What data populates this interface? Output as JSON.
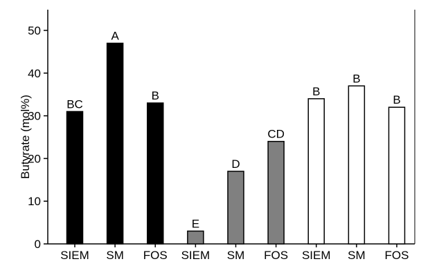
{
  "chart_data": {
    "type": "bar",
    "title": "",
    "xlabel": "",
    "ylabel": "Butyrate (mol%)",
    "ylim": [
      0,
      55
    ],
    "yticks": [
      0,
      10,
      20,
      30,
      40,
      50
    ],
    "grid": false,
    "categories": [
      "SIEM",
      "SM",
      "FOS",
      "SIEM",
      "SM",
      "FOS",
      "SIEM",
      "SM",
      "FOS"
    ],
    "values": [
      31,
      47,
      33,
      3,
      17,
      24,
      34,
      37,
      32
    ],
    "labels": [
      "BC",
      "A",
      "B",
      "E",
      "D",
      "CD",
      "B",
      "B",
      "B"
    ],
    "fill_colors": [
      "#000000",
      "#000000",
      "#000000",
      "#808080",
      "#808080",
      "#808080",
      "#ffffff",
      "#ffffff",
      "#ffffff"
    ]
  }
}
